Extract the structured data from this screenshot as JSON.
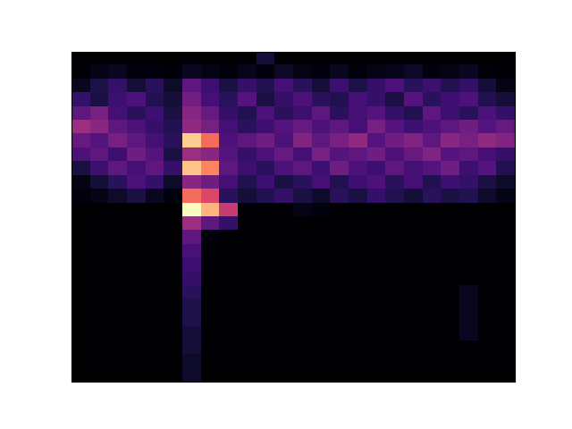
{
  "chart_data": {
    "type": "heatmap",
    "tick_labels": false,
    "cells": [
      [
        2,
        2,
        2,
        2,
        2,
        2,
        3,
        2,
        2,
        2,
        12,
        2,
        2,
        2,
        2,
        2,
        2,
        2,
        2,
        2,
        2,
        2,
        2,
        2
      ],
      [
        3,
        6,
        8,
        4,
        5,
        3,
        8,
        6,
        4,
        7,
        5,
        9,
        6,
        5,
        8,
        4,
        6,
        7,
        9,
        5,
        6,
        8,
        4,
        3
      ],
      [
        8,
        15,
        20,
        12,
        18,
        10,
        30,
        22,
        14,
        20,
        16,
        24,
        18,
        12,
        22,
        15,
        20,
        26,
        18,
        22,
        16,
        20,
        12,
        6
      ],
      [
        20,
        14,
        22,
        26,
        16,
        12,
        35,
        24,
        18,
        28,
        14,
        20,
        26,
        18,
        16,
        24,
        20,
        14,
        28,
        18,
        22,
        26,
        16,
        12
      ],
      [
        30,
        36,
        24,
        18,
        22,
        14,
        40,
        32,
        20,
        16,
        26,
        18,
        22,
        30,
        18,
        24,
        28,
        20,
        16,
        30,
        22,
        18,
        26,
        20
      ],
      [
        45,
        40,
        30,
        26,
        20,
        16,
        42,
        36,
        24,
        18,
        22,
        28,
        32,
        26,
        30,
        24,
        36,
        28,
        22,
        26,
        30,
        34,
        28,
        32
      ],
      [
        32,
        28,
        36,
        30,
        24,
        18,
        90,
        70,
        26,
        30,
        34,
        26,
        38,
        30,
        36,
        42,
        28,
        34,
        38,
        30,
        40,
        36,
        42,
        38
      ],
      [
        26,
        30,
        22,
        34,
        28,
        14,
        45,
        40,
        28,
        20,
        26,
        32,
        24,
        36,
        28,
        30,
        34,
        26,
        32,
        38,
        28,
        30,
        24,
        20
      ],
      [
        14,
        22,
        30,
        24,
        30,
        20,
        88,
        75,
        30,
        22,
        18,
        26,
        30,
        22,
        34,
        26,
        22,
        30,
        24,
        28,
        34,
        22,
        28,
        16
      ],
      [
        6,
        12,
        18,
        26,
        20,
        10,
        40,
        34,
        24,
        16,
        22,
        14,
        18,
        24,
        16,
        22,
        26,
        18,
        24,
        16,
        22,
        20,
        14,
        10
      ],
      [
        4,
        6,
        10,
        14,
        8,
        4,
        70,
        60,
        18,
        12,
        16,
        20,
        14,
        10,
        18,
        14,
        20,
        16,
        12,
        18,
        14,
        16,
        10,
        6
      ],
      [
        2,
        2,
        2,
        2,
        2,
        2,
        100,
        85,
        55,
        3,
        2,
        2,
        6,
        5,
        2,
        2,
        2,
        2,
        2,
        2,
        2,
        2,
        2,
        2
      ],
      [
        2,
        2,
        2,
        2,
        2,
        2,
        45,
        30,
        20,
        2,
        2,
        2,
        2,
        2,
        2,
        2,
        2,
        2,
        2,
        2,
        2,
        2,
        2,
        2
      ],
      [
        2,
        2,
        2,
        2,
        2,
        2,
        30,
        4,
        2,
        2,
        2,
        2,
        2,
        2,
        2,
        2,
        2,
        2,
        2,
        2,
        2,
        2,
        2,
        2
      ],
      [
        2,
        2,
        2,
        2,
        2,
        2,
        25,
        3,
        2,
        2,
        2,
        2,
        2,
        2,
        2,
        2,
        2,
        2,
        2,
        2,
        2,
        2,
        2,
        2
      ],
      [
        2,
        2,
        2,
        2,
        2,
        2,
        22,
        3,
        2,
        2,
        2,
        2,
        2,
        2,
        2,
        2,
        2,
        2,
        2,
        2,
        2,
        2,
        2,
        2
      ],
      [
        2,
        2,
        2,
        2,
        2,
        2,
        20,
        2,
        2,
        2,
        2,
        2,
        2,
        2,
        2,
        2,
        2,
        2,
        2,
        2,
        2,
        2,
        2,
        2
      ],
      [
        2,
        2,
        2,
        2,
        2,
        2,
        18,
        2,
        2,
        2,
        2,
        2,
        2,
        2,
        2,
        2,
        2,
        2,
        2,
        2,
        2,
        8,
        2,
        2
      ],
      [
        2,
        2,
        2,
        2,
        2,
        2,
        15,
        2,
        2,
        2,
        2,
        2,
        2,
        2,
        2,
        2,
        2,
        2,
        2,
        2,
        2,
        8,
        2,
        2
      ],
      [
        2,
        2,
        2,
        2,
        2,
        2,
        15,
        2,
        2,
        2,
        2,
        2,
        2,
        2,
        2,
        2,
        2,
        2,
        2,
        2,
        2,
        8,
        2,
        2
      ],
      [
        2,
        2,
        2,
        2,
        2,
        2,
        12,
        2,
        2,
        2,
        2,
        2,
        2,
        2,
        2,
        2,
        2,
        2,
        2,
        2,
        2,
        8,
        2,
        2
      ],
      [
        2,
        2,
        2,
        2,
        2,
        2,
        12,
        2,
        2,
        2,
        2,
        2,
        2,
        2,
        2,
        2,
        2,
        2,
        2,
        2,
        2,
        2,
        2,
        2
      ],
      [
        2,
        2,
        2,
        2,
        2,
        2,
        10,
        2,
        2,
        2,
        2,
        2,
        2,
        2,
        2,
        2,
        2,
        2,
        2,
        2,
        2,
        2,
        2,
        2
      ],
      [
        2,
        2,
        2,
        2,
        2,
        2,
        10,
        2,
        2,
        2,
        2,
        2,
        2,
        2,
        2,
        2,
        2,
        2,
        2,
        2,
        2,
        2,
        2,
        2
      ]
    ]
  }
}
